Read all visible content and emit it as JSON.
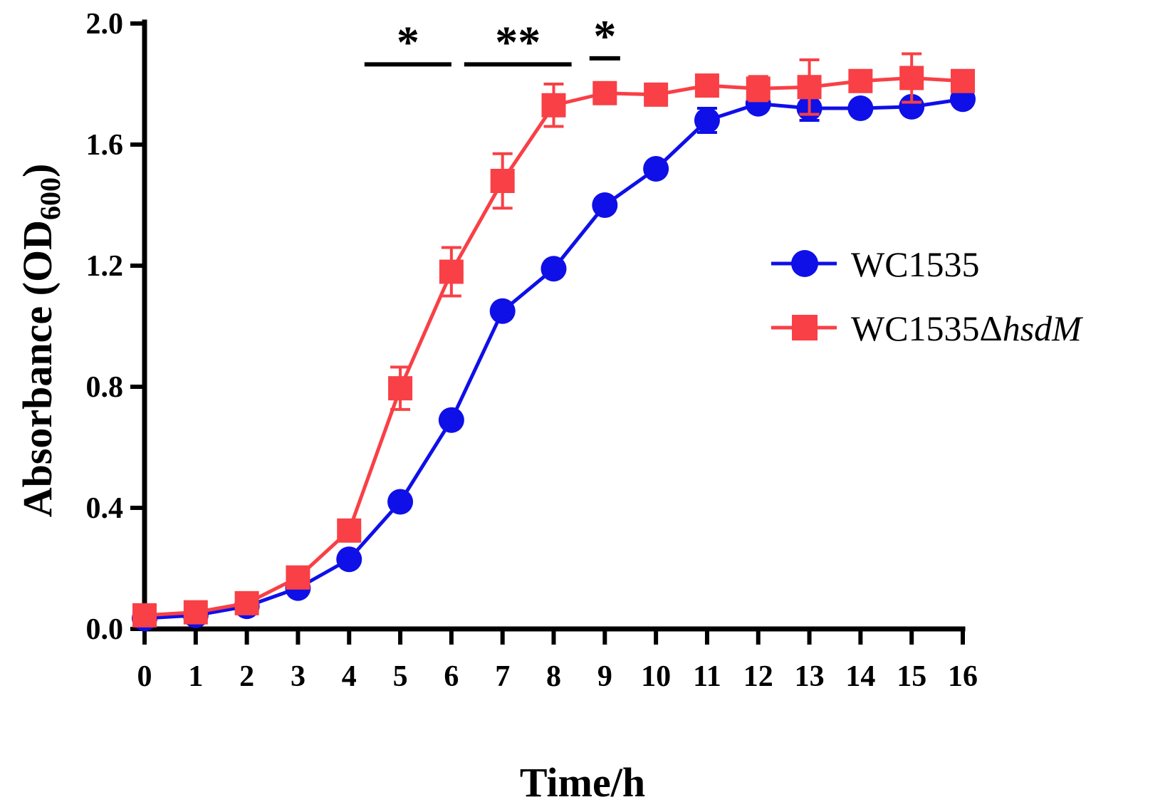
{
  "chart_data": {
    "type": "line",
    "title": "",
    "xlabel": "Time/h",
    "ylabel": "Absorbance (OD",
    "ylabel_sub": "600",
    "ylabel_close": ")",
    "xlim": [
      0,
      16
    ],
    "ylim": [
      0,
      2.0
    ],
    "x": [
      0,
      1,
      2,
      3,
      4,
      5,
      6,
      7,
      8,
      9,
      10,
      11,
      12,
      13,
      14,
      15,
      16
    ],
    "x_tick_labels": [
      "0",
      "1",
      "2",
      "3",
      "4",
      "5",
      "6",
      "7",
      "8",
      "9",
      "10",
      "11",
      "12",
      "13",
      "14",
      "15",
      "16"
    ],
    "y_ticks": [
      0.0,
      0.4,
      0.8,
      1.2,
      1.6,
      2.0
    ],
    "y_tick_labels": [
      "0.0",
      "0.4",
      "0.8",
      "1.2",
      "1.6",
      "2.0"
    ],
    "grid": false,
    "legend_position": "right-middle",
    "series": [
      {
        "name_main": "WC1535",
        "name_italic": "",
        "color": "#0f0fe8",
        "marker": "circle",
        "values": [
          0.035,
          0.045,
          0.075,
          0.135,
          0.23,
          0.42,
          0.69,
          1.05,
          1.19,
          1.4,
          1.52,
          1.68,
          1.735,
          1.72,
          1.72,
          1.725,
          1.75
        ],
        "errors": [
          0.005,
          0.005,
          0.01,
          0.01,
          0.015,
          0.02,
          0.02,
          0.02,
          0.02,
          0.02,
          0.02,
          0.04,
          0.02,
          0.04,
          0.02,
          0.02,
          0.02
        ]
      },
      {
        "name_main": "WC1535Δ",
        "name_italic": "hsdM",
        "color": "#f84046",
        "marker": "square",
        "values": [
          0.045,
          0.055,
          0.085,
          0.17,
          0.325,
          0.795,
          1.18,
          1.48,
          1.73,
          1.77,
          1.765,
          1.795,
          1.785,
          1.79,
          1.81,
          1.82,
          1.81
        ],
        "errors": [
          0.005,
          0.005,
          0.01,
          0.01,
          0.02,
          0.07,
          0.08,
          0.09,
          0.07,
          0.02,
          0.02,
          0.02,
          0.04,
          0.09,
          0.02,
          0.08,
          0.02
        ]
      }
    ],
    "annotations": [
      {
        "label": "*",
        "x_start": 4.3,
        "x_end": 6.0,
        "y": 1.865
      },
      {
        "label": "**",
        "x_start": 6.25,
        "x_end": 8.35,
        "y": 1.865
      },
      {
        "label": "*",
        "x_start": 8.7,
        "x_end": 9.3,
        "y": 1.885
      }
    ]
  }
}
